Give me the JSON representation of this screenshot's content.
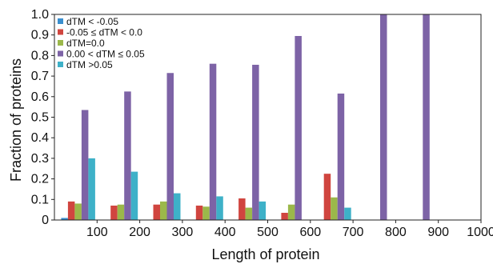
{
  "chart_data": {
    "type": "bar",
    "xlabel": "Length of protein",
    "ylabel": "Fraction of proteins",
    "ylim": [
      0,
      1.0
    ],
    "yticks": [
      "0",
      "0.1",
      "0.2",
      "0.3",
      "0.4",
      "0.5",
      "0.6",
      "0.7",
      "0.8",
      "0.9",
      "1.0"
    ],
    "xlim": [
      0,
      1000
    ],
    "xticks": [
      "100",
      "200",
      "300",
      "400",
      "500",
      "600",
      "700",
      "800",
      "900",
      "1000"
    ],
    "categories": [
      "0-100",
      "100-200",
      "200-300",
      "300-400",
      "400-500",
      "500-600",
      "600-700",
      "700-800",
      "800-900",
      "900-1000"
    ],
    "legend_position": "top-left",
    "grid": false,
    "series": [
      {
        "name": "dTM < -0.05",
        "color": "#3a8fcf",
        "values": [
          0.01,
          0,
          0,
          0,
          0,
          0,
          0,
          0,
          0,
          0
        ]
      },
      {
        "name": "-0.05 ≤ dTM < 0.0",
        "color": "#d0453f",
        "values": [
          0.09,
          0.07,
          0.075,
          0.07,
          0.105,
          0.035,
          0.225,
          0,
          0,
          0
        ]
      },
      {
        "name": "dTM=0.0",
        "color": "#9bb84a",
        "values": [
          0.08,
          0.075,
          0.09,
          0.065,
          0.06,
          0.075,
          0.11,
          0,
          0,
          0
        ]
      },
      {
        "name": "0.00 < dTM ≤ 0.05",
        "color": "#7d63a6",
        "values": [
          0.535,
          0.625,
          0.715,
          0.76,
          0.755,
          0.895,
          0.615,
          1.0,
          1.0,
          0
        ]
      },
      {
        "name": "dTM >0.05",
        "color": "#3eb1c8",
        "values": [
          0.3,
          0.235,
          0.13,
          0.115,
          0.09,
          0,
          0.06,
          0,
          0,
          0
        ]
      }
    ]
  }
}
